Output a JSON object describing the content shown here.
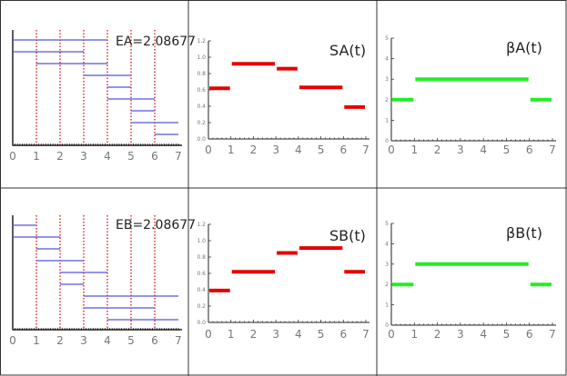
{
  "layout_grid": {
    "rows": 2,
    "cols": 3,
    "border_color": "#222222"
  },
  "panels": [
    {
      "id": "A_timeline",
      "label": "EA=2.08677",
      "chart_data": {
        "type": "interval-timeline",
        "x_ticks": [
          0,
          1,
          2,
          3,
          4,
          5,
          6,
          7
        ],
        "xlim": [
          0,
          7.2
        ],
        "dotted_lines_at": [
          1,
          2,
          3,
          4,
          5,
          6
        ],
        "intervals": [
          {
            "start": 0,
            "end": 4
          },
          {
            "start": 0,
            "end": 3
          },
          {
            "start": 1,
            "end": 4
          },
          {
            "start": 3,
            "end": 5
          },
          {
            "start": 4,
            "end": 5
          },
          {
            "start": 4,
            "end": 6
          },
          {
            "start": 5,
            "end": 6
          },
          {
            "start": 5,
            "end": 7
          },
          {
            "start": 6,
            "end": 7
          }
        ],
        "color": "#5555dd",
        "dotted_color": "#cc0000"
      }
    },
    {
      "id": "A_S",
      "label": "SA(t)",
      "chart_data": {
        "type": "step",
        "x_ticks": [
          0,
          1,
          2,
          3,
          4,
          5,
          6,
          7
        ],
        "y_ticks": [
          "0.0",
          "0.2",
          "0.4",
          "0.6",
          "0.8",
          "1.0",
          "1.2"
        ],
        "ylim": [
          0,
          1.2
        ],
        "xlim": [
          0,
          7
        ],
        "segments": [
          {
            "x0": 0,
            "x1": 1,
            "y": 0.62
          },
          {
            "x0": 1,
            "x1": 3,
            "y": 0.92
          },
          {
            "x0": 3,
            "x1": 4,
            "y": 0.86
          },
          {
            "x0": 4,
            "x1": 6,
            "y": 0.63
          },
          {
            "x0": 6,
            "x1": 7,
            "y": 0.39
          }
        ],
        "color": "#e60000"
      }
    },
    {
      "id": "A_beta",
      "label": "βA(t)",
      "chart_data": {
        "type": "step",
        "x_ticks": [
          0,
          1,
          2,
          3,
          4,
          5,
          6,
          7
        ],
        "y_ticks": [
          "0",
          "1",
          "2",
          "3",
          "4",
          "5"
        ],
        "ylim": [
          0,
          5
        ],
        "xlim": [
          0,
          7
        ],
        "segments": [
          {
            "x0": 0,
            "x1": 1,
            "y": 2
          },
          {
            "x0": 1,
            "x1": 6,
            "y": 3
          },
          {
            "x0": 6,
            "x1": 7,
            "y": 2
          }
        ],
        "color": "#22ee22"
      }
    },
    {
      "id": "B_timeline",
      "label": "EB=2.08677",
      "chart_data": {
        "type": "interval-timeline",
        "x_ticks": [
          0,
          1,
          2,
          3,
          4,
          5,
          6,
          7
        ],
        "xlim": [
          0,
          7.2
        ],
        "dotted_lines_at": [
          1,
          2,
          3,
          4,
          5,
          6
        ],
        "intervals": [
          {
            "start": 0,
            "end": 1
          },
          {
            "start": 0,
            "end": 2
          },
          {
            "start": 1,
            "end": 2
          },
          {
            "start": 1,
            "end": 3
          },
          {
            "start": 2,
            "end": 4
          },
          {
            "start": 2,
            "end": 3
          },
          {
            "start": 3,
            "end": 7
          },
          {
            "start": 3,
            "end": 6
          },
          {
            "start": 4,
            "end": 7
          }
        ],
        "color": "#5555dd",
        "dotted_color": "#cc0000"
      }
    },
    {
      "id": "B_S",
      "label": "SB(t)",
      "chart_data": {
        "type": "step",
        "x_ticks": [
          0,
          1,
          2,
          3,
          4,
          5,
          6,
          7
        ],
        "y_ticks": [
          "0.0",
          "0.2",
          "0.4",
          "0.6",
          "0.8",
          "1.0",
          "1.2"
        ],
        "ylim": [
          0,
          1.2
        ],
        "xlim": [
          0,
          7
        ],
        "segments": [
          {
            "x0": 0,
            "x1": 1,
            "y": 0.39
          },
          {
            "x0": 1,
            "x1": 3,
            "y": 0.62
          },
          {
            "x0": 3,
            "x1": 4,
            "y": 0.85
          },
          {
            "x0": 4,
            "x1": 6,
            "y": 0.91
          },
          {
            "x0": 6,
            "x1": 7,
            "y": 0.62
          }
        ],
        "color": "#e60000"
      }
    },
    {
      "id": "B_beta",
      "label": "βB(t)",
      "chart_data": {
        "type": "step",
        "x_ticks": [
          0,
          1,
          2,
          3,
          4,
          5,
          6,
          7
        ],
        "y_ticks": [
          "0",
          "1",
          "2",
          "3",
          "4",
          "5"
        ],
        "ylim": [
          0,
          5
        ],
        "xlim": [
          0,
          7
        ],
        "segments": [
          {
            "x0": 0,
            "x1": 1,
            "y": 2
          },
          {
            "x0": 1,
            "x1": 6,
            "y": 3
          },
          {
            "x0": 6,
            "x1": 7,
            "y": 2
          }
        ],
        "color": "#22ee22"
      }
    }
  ]
}
